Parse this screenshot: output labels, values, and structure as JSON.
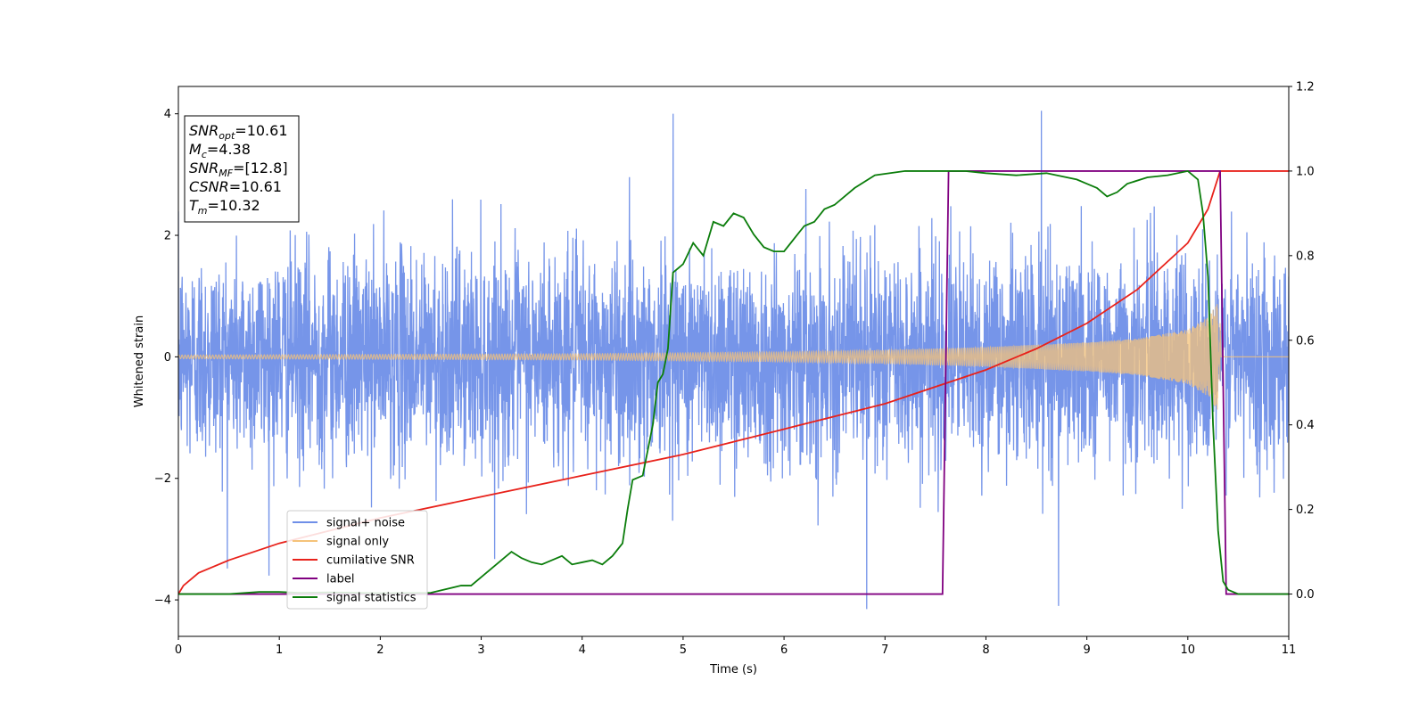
{
  "chart_data": {
    "type": "line",
    "title": "",
    "xlabel": "Time (s)",
    "ylabel_left": "Whitened strain",
    "ylabel_right": "",
    "xlim": [
      0,
      11
    ],
    "ylim_left": [
      -4.6,
      4.45
    ],
    "ylim_right": [
      -0.1,
      1.2
    ],
    "x_ticks": [
      0,
      1,
      2,
      3,
      4,
      5,
      6,
      7,
      8,
      9,
      10,
      11
    ],
    "y_ticks_left": [
      -4,
      -2,
      0,
      2,
      4
    ],
    "y_ticks_right": [
      0.0,
      0.2,
      0.4,
      0.6,
      0.8,
      1.0,
      1.2
    ],
    "grid": false,
    "legend_position": "lower-left",
    "info_box": {
      "lines": [
        {
          "base": "SNR",
          "sub": "opt",
          "rest": "=10.61"
        },
        {
          "base": "M",
          "sub": "c",
          "rest": "=4.38"
        },
        {
          "base": "SNR",
          "sub": "MF",
          "rest": "=[12.8]"
        },
        {
          "base": "CSNR",
          "sub": "",
          "rest": "=10.61"
        },
        {
          "base": "T",
          "sub": "m",
          "rest": "=10.32"
        }
      ]
    },
    "series": [
      {
        "name": "signal+ noise",
        "axis": "left",
        "color": "#6f8fe8",
        "description_values": {
          "approx_std": 0.75,
          "min": -4.15,
          "max": 4.05,
          "notable_peaks": [
            [
              4.9,
              4.0
            ],
            [
              8.55,
              4.05
            ],
            [
              6.82,
              -4.15
            ],
            [
              8.72,
              -4.1
            ]
          ]
        }
      },
      {
        "name": "signal only",
        "axis": "left",
        "color": "#f5c37a",
        "envelope": {
          "x": [
            0,
            2,
            4,
            6,
            7,
            8,
            9,
            9.5,
            10,
            10.2,
            10.32,
            10.33,
            11
          ],
          "amp": [
            0.03,
            0.04,
            0.05,
            0.08,
            0.11,
            0.16,
            0.24,
            0.3,
            0.45,
            0.65,
            0.95,
            0.0,
            0.0
          ]
        }
      },
      {
        "name": "cumilative SNR",
        "axis": "right",
        "color": "#e8221b",
        "x": [
          0,
          0.05,
          0.2,
          0.5,
          1,
          2,
          3,
          4,
          5,
          6,
          7,
          8,
          8.5,
          9,
          9.5,
          10,
          10.2,
          10.32,
          11
        ],
        "y": [
          0.0,
          0.02,
          0.05,
          0.08,
          0.12,
          0.18,
          0.23,
          0.28,
          0.33,
          0.39,
          0.45,
          0.53,
          0.58,
          0.64,
          0.72,
          0.83,
          0.91,
          1.0,
          1.0
        ]
      },
      {
        "name": "label",
        "axis": "right",
        "color": "#800080",
        "x": [
          0,
          7.57,
          7.63,
          10.32,
          10.38,
          11
        ],
        "y": [
          0,
          0,
          1,
          1,
          0,
          0
        ]
      },
      {
        "name": "signal statistics",
        "axis": "right",
        "color": "#0b7d0b",
        "x": [
          0,
          0.5,
          0.8,
          1.0,
          1.2,
          1.5,
          2.0,
          2.5,
          2.8,
          2.9,
          3.0,
          3.1,
          3.2,
          3.3,
          3.4,
          3.5,
          3.6,
          3.7,
          3.8,
          3.9,
          4.0,
          4.1,
          4.2,
          4.3,
          4.4,
          4.45,
          4.5,
          4.6,
          4.7,
          4.75,
          4.8,
          4.85,
          4.9,
          5.0,
          5.1,
          5.2,
          5.3,
          5.4,
          5.5,
          5.6,
          5.7,
          5.8,
          5.9,
          6.0,
          6.1,
          6.2,
          6.3,
          6.4,
          6.5,
          6.7,
          6.9,
          7.2,
          7.5,
          7.8,
          8.0,
          8.3,
          8.6,
          8.8,
          8.9,
          9.0,
          9.1,
          9.2,
          9.3,
          9.4,
          9.6,
          9.8,
          10.0,
          10.1,
          10.15,
          10.2,
          10.25,
          10.3,
          10.35,
          10.4,
          10.5,
          11
        ],
        "y": [
          0.0,
          0.0,
          0.005,
          0.005,
          0.003,
          0.004,
          0.002,
          0.003,
          0.02,
          0.02,
          0.04,
          0.06,
          0.08,
          0.1,
          0.085,
          0.075,
          0.07,
          0.08,
          0.09,
          0.07,
          0.075,
          0.08,
          0.07,
          0.09,
          0.12,
          0.2,
          0.27,
          0.28,
          0.4,
          0.5,
          0.52,
          0.58,
          0.76,
          0.78,
          0.83,
          0.8,
          0.88,
          0.87,
          0.9,
          0.89,
          0.85,
          0.82,
          0.81,
          0.81,
          0.84,
          0.87,
          0.88,
          0.91,
          0.92,
          0.96,
          0.99,
          1.0,
          1.0,
          1.0,
          0.995,
          0.99,
          0.995,
          0.985,
          0.98,
          0.97,
          0.96,
          0.94,
          0.95,
          0.97,
          0.985,
          0.99,
          1.0,
          0.98,
          0.9,
          0.75,
          0.4,
          0.15,
          0.03,
          0.01,
          0.0,
          0.0
        ]
      }
    ]
  }
}
